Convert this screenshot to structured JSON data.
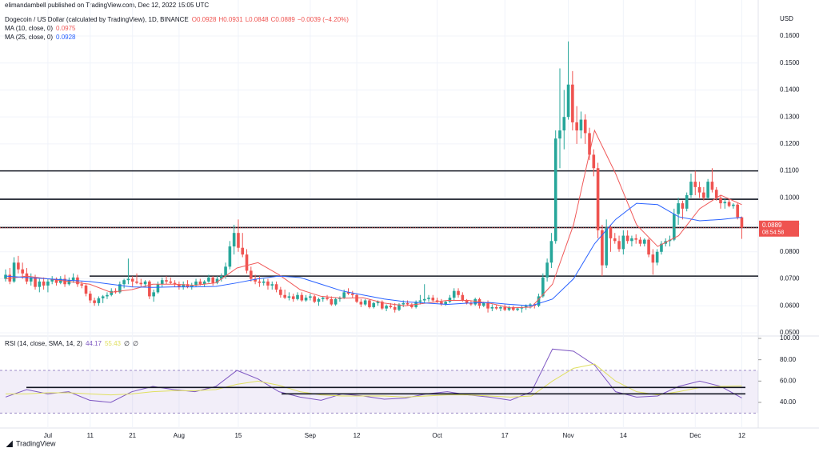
{
  "chart_data": {
    "type": "candlestick",
    "published": "elimandambell published on TradingView.com, Dec 12, 2022 15:05 UTC",
    "title": "Dogecoin / US Dollar (calculated by TradingView), 1D, BINANCE",
    "ohlc_labels": [
      "O0.0928",
      "H0.0931",
      "L0.0848",
      "C0.0889",
      "−0.0039 (−4.20%)"
    ],
    "currency": "USD",
    "last_price_label": "0.0889",
    "countdown": "08:54:58",
    "brand": "TradingView",
    "up_color": "#26a69a",
    "down_color": "#ef5350",
    "ylim": [
      0.0488,
      0.1689
    ],
    "yticks": [
      {
        "value": 0.05,
        "label": "0.0500"
      },
      {
        "value": 0.06,
        "label": "0.0600"
      },
      {
        "value": 0.07,
        "label": "0.0700"
      },
      {
        "value": 0.08,
        "label": "0.0800"
      },
      {
        "value": 0.09,
        "label": "0.0900"
      },
      {
        "value": 0.1,
        "label": "0.1000"
      },
      {
        "value": 0.11,
        "label": "0.1100"
      },
      {
        "value": 0.12,
        "label": "0.1200"
      },
      {
        "value": 0.13,
        "label": "0.1300"
      },
      {
        "value": 0.14,
        "label": "0.1400"
      },
      {
        "value": 0.15,
        "label": "0.1500"
      },
      {
        "value": 0.16,
        "label": "0.1600"
      }
    ],
    "xticks": [
      {
        "value": 10,
        "label": "Jul"
      },
      {
        "value": 20,
        "label": "11"
      },
      {
        "value": 30,
        "label": "21"
      },
      {
        "value": 41,
        "label": "Aug"
      },
      {
        "value": 55,
        "label": "15"
      },
      {
        "value": 72,
        "label": "Sep"
      },
      {
        "value": 83,
        "label": "12"
      },
      {
        "value": 102,
        "label": "Oct"
      },
      {
        "value": 118,
        "label": "17"
      },
      {
        "value": 133,
        "label": "Nov"
      },
      {
        "value": 146,
        "label": "14"
      },
      {
        "value": 163,
        "label": "Dec"
      },
      {
        "value": 174,
        "label": "12"
      }
    ],
    "levels": [
      0.11,
      0.0995,
      0.089,
      0.071
    ],
    "ma": [
      {
        "name": "MA (10, close, 0)",
        "value_label": "0.0975",
        "color": "#f05a5a",
        "values": [
          0.07,
          0.071,
          0.07,
          0.069,
          0.068,
          0.065,
          0.066,
          0.068,
          0.068,
          0.0676,
          0.0685,
          0.074,
          0.076,
          0.0715,
          0.066,
          0.0635,
          0.0628,
          0.063,
          0.061,
          0.06,
          0.061,
          0.062,
          0.062,
          0.061,
          0.0592,
          0.0595,
          0.068,
          0.09,
          0.125,
          0.109,
          0.09,
          0.082,
          0.086,
          0.096,
          0.101,
          0.0975
        ]
      },
      {
        "name": "MA (25, close, 0)",
        "value_label": "0.0928",
        "color": "#2962ff",
        "values": [
          0.071,
          0.0705,
          0.07,
          0.0695,
          0.069,
          0.068,
          0.067,
          0.0668,
          0.067,
          0.067,
          0.0672,
          0.0685,
          0.07,
          0.071,
          0.0705,
          0.068,
          0.0655,
          0.064,
          0.0625,
          0.0615,
          0.061,
          0.0605,
          0.061,
          0.0612,
          0.0605,
          0.06,
          0.0625,
          0.07,
          0.083,
          0.092,
          0.098,
          0.0975,
          0.093,
          0.0915,
          0.092,
          0.0928
        ]
      }
    ],
    "ohlc": [
      [
        0.07,
        0.0735,
        0.069,
        0.0715
      ],
      [
        0.0715,
        0.074,
        0.068,
        0.069
      ],
      [
        0.069,
        0.078,
        0.0685,
        0.076
      ],
      [
        0.076,
        0.0785,
        0.072,
        0.0735
      ],
      [
        0.0735,
        0.076,
        0.07,
        0.072
      ],
      [
        0.072,
        0.074,
        0.068,
        0.069
      ],
      [
        0.069,
        0.072,
        0.0675,
        0.0705
      ],
      [
        0.0705,
        0.0715,
        0.066,
        0.067
      ],
      [
        0.067,
        0.07,
        0.065,
        0.069
      ],
      [
        0.069,
        0.0705,
        0.066,
        0.0675
      ],
      [
        0.0675,
        0.07,
        0.065,
        0.069
      ],
      [
        0.069,
        0.071,
        0.068,
        0.07
      ],
      [
        0.07,
        0.0705,
        0.0675,
        0.0685
      ],
      [
        0.0685,
        0.071,
        0.068,
        0.07
      ],
      [
        0.07,
        0.0715,
        0.067,
        0.068
      ],
      [
        0.068,
        0.0705,
        0.0675,
        0.0695
      ],
      [
        0.0695,
        0.072,
        0.0685,
        0.0705
      ],
      [
        0.0705,
        0.0715,
        0.067,
        0.068
      ],
      [
        0.068,
        0.069,
        0.0665,
        0.0675
      ],
      [
        0.0675,
        0.068,
        0.0635,
        0.0645
      ],
      [
        0.0645,
        0.0655,
        0.061,
        0.062
      ],
      [
        0.062,
        0.063,
        0.06,
        0.061
      ],
      [
        0.061,
        0.0635,
        0.06,
        0.0628
      ],
      [
        0.0628,
        0.064,
        0.061,
        0.0635
      ],
      [
        0.0635,
        0.065,
        0.0625,
        0.064
      ],
      [
        0.064,
        0.0665,
        0.0635,
        0.0655
      ],
      [
        0.0655,
        0.0665,
        0.0645,
        0.065
      ],
      [
        0.065,
        0.069,
        0.0645,
        0.068
      ],
      [
        0.068,
        0.07,
        0.0665,
        0.0695
      ],
      [
        0.0695,
        0.0775,
        0.068,
        0.07
      ],
      [
        0.07,
        0.071,
        0.067,
        0.069
      ],
      [
        0.069,
        0.072,
        0.068,
        0.0685
      ],
      [
        0.0685,
        0.07,
        0.067,
        0.068
      ],
      [
        0.068,
        0.0695,
        0.067,
        0.069
      ],
      [
        0.069,
        0.0695,
        0.0625,
        0.0635
      ],
      [
        0.0635,
        0.066,
        0.0615,
        0.065
      ],
      [
        0.065,
        0.069,
        0.0645,
        0.068
      ],
      [
        0.068,
        0.0705,
        0.067,
        0.0695
      ],
      [
        0.0695,
        0.071,
        0.068,
        0.069
      ],
      [
        0.069,
        0.0705,
        0.068,
        0.0685
      ],
      [
        0.0685,
        0.0695,
        0.067,
        0.068
      ],
      [
        0.068,
        0.069,
        0.066,
        0.067
      ],
      [
        0.067,
        0.069,
        0.066,
        0.068
      ],
      [
        0.068,
        0.0695,
        0.0665,
        0.067
      ],
      [
        0.067,
        0.0685,
        0.066,
        0.0675
      ],
      [
        0.0675,
        0.07,
        0.067,
        0.069
      ],
      [
        0.069,
        0.07,
        0.0675,
        0.068
      ],
      [
        0.068,
        0.0695,
        0.067,
        0.069
      ],
      [
        0.069,
        0.0715,
        0.0685,
        0.0705
      ],
      [
        0.0705,
        0.071,
        0.0675,
        0.0685
      ],
      [
        0.0685,
        0.071,
        0.068,
        0.07
      ],
      [
        0.07,
        0.072,
        0.069,
        0.071
      ],
      [
        0.071,
        0.076,
        0.07,
        0.0745
      ],
      [
        0.0745,
        0.084,
        0.0735,
        0.082
      ],
      [
        0.082,
        0.09,
        0.079,
        0.087
      ],
      [
        0.087,
        0.092,
        0.08,
        0.0815
      ],
      [
        0.0815,
        0.087,
        0.078,
        0.079
      ],
      [
        0.079,
        0.081,
        0.072,
        0.073
      ],
      [
        0.073,
        0.0745,
        0.069,
        0.07
      ],
      [
        0.07,
        0.0715,
        0.068,
        0.069
      ],
      [
        0.069,
        0.071,
        0.067,
        0.0685
      ],
      [
        0.0685,
        0.07,
        0.0675,
        0.069
      ],
      [
        0.069,
        0.07,
        0.066,
        0.0675
      ],
      [
        0.0675,
        0.069,
        0.066,
        0.068
      ],
      [
        0.068,
        0.069,
        0.065,
        0.066
      ],
      [
        0.066,
        0.067,
        0.063,
        0.064
      ],
      [
        0.064,
        0.066,
        0.0625,
        0.063
      ],
      [
        0.063,
        0.065,
        0.062,
        0.0635
      ],
      [
        0.0635,
        0.0645,
        0.0615,
        0.0625
      ],
      [
        0.0625,
        0.065,
        0.062,
        0.064
      ],
      [
        0.064,
        0.065,
        0.0615,
        0.062
      ],
      [
        0.062,
        0.064,
        0.0615,
        0.063
      ],
      [
        0.063,
        0.0645,
        0.062,
        0.0635
      ],
      [
        0.0635,
        0.064,
        0.061,
        0.0615
      ],
      [
        0.0615,
        0.063,
        0.06,
        0.0625
      ],
      [
        0.0625,
        0.0635,
        0.0615,
        0.063
      ],
      [
        0.063,
        0.064,
        0.062,
        0.0625
      ],
      [
        0.0625,
        0.0635,
        0.06,
        0.0605
      ],
      [
        0.0605,
        0.063,
        0.06,
        0.0625
      ],
      [
        0.0625,
        0.0635,
        0.0615,
        0.063
      ],
      [
        0.063,
        0.066,
        0.0625,
        0.065
      ],
      [
        0.065,
        0.0665,
        0.064,
        0.0645
      ],
      [
        0.0645,
        0.0655,
        0.063,
        0.064
      ],
      [
        0.064,
        0.0645,
        0.061,
        0.0615
      ],
      [
        0.0615,
        0.0625,
        0.0595,
        0.0605
      ],
      [
        0.0605,
        0.0625,
        0.06,
        0.062
      ],
      [
        0.062,
        0.0625,
        0.059,
        0.0595
      ],
      [
        0.0595,
        0.0615,
        0.059,
        0.061
      ],
      [
        0.061,
        0.062,
        0.06,
        0.0615
      ],
      [
        0.0615,
        0.062,
        0.0585,
        0.059
      ],
      [
        0.059,
        0.0605,
        0.058,
        0.06
      ],
      [
        0.06,
        0.061,
        0.059,
        0.0595
      ],
      [
        0.0595,
        0.061,
        0.0575,
        0.0585
      ],
      [
        0.0585,
        0.061,
        0.058,
        0.0605
      ],
      [
        0.0605,
        0.062,
        0.0595,
        0.061
      ],
      [
        0.061,
        0.062,
        0.06,
        0.0605
      ],
      [
        0.0605,
        0.061,
        0.059,
        0.0595
      ],
      [
        0.0595,
        0.062,
        0.059,
        0.0615
      ],
      [
        0.0615,
        0.064,
        0.0605,
        0.062
      ],
      [
        0.062,
        0.068,
        0.061,
        0.0625
      ],
      [
        0.0625,
        0.064,
        0.0615,
        0.063
      ],
      [
        0.063,
        0.064,
        0.0615,
        0.062
      ],
      [
        0.062,
        0.063,
        0.061,
        0.0615
      ],
      [
        0.0615,
        0.0625,
        0.06,
        0.0605
      ],
      [
        0.0605,
        0.062,
        0.06,
        0.0615
      ],
      [
        0.0615,
        0.064,
        0.061,
        0.063
      ],
      [
        0.063,
        0.0665,
        0.062,
        0.0655
      ],
      [
        0.0655,
        0.0665,
        0.063,
        0.064
      ],
      [
        0.064,
        0.065,
        0.0615,
        0.062
      ],
      [
        0.062,
        0.0625,
        0.0605,
        0.061
      ],
      [
        0.061,
        0.062,
        0.06,
        0.0605
      ],
      [
        0.0605,
        0.063,
        0.06,
        0.0625
      ],
      [
        0.0625,
        0.063,
        0.059,
        0.06
      ],
      [
        0.06,
        0.0615,
        0.0595,
        0.061
      ],
      [
        0.061,
        0.062,
        0.0575,
        0.059
      ],
      [
        0.059,
        0.0605,
        0.058,
        0.0595
      ],
      [
        0.0595,
        0.0605,
        0.0585,
        0.059
      ],
      [
        0.059,
        0.06,
        0.058,
        0.0595
      ],
      [
        0.0595,
        0.0605,
        0.058,
        0.0585
      ],
      [
        0.0585,
        0.06,
        0.058,
        0.0595
      ],
      [
        0.0595,
        0.06,
        0.058,
        0.0585
      ],
      [
        0.0585,
        0.0595,
        0.058,
        0.059
      ],
      [
        0.059,
        0.06,
        0.0575,
        0.0595
      ],
      [
        0.0595,
        0.0605,
        0.0585,
        0.06
      ],
      [
        0.06,
        0.061,
        0.059,
        0.0605
      ],
      [
        0.0605,
        0.061,
        0.059,
        0.06
      ],
      [
        0.06,
        0.0645,
        0.0595,
        0.0635
      ],
      [
        0.0635,
        0.072,
        0.063,
        0.0705
      ],
      [
        0.0705,
        0.0775,
        0.069,
        0.076
      ],
      [
        0.076,
        0.087,
        0.074,
        0.084
      ],
      [
        0.084,
        0.125,
        0.083,
        0.122
      ],
      [
        0.122,
        0.148,
        0.111,
        0.125
      ],
      [
        0.125,
        0.14,
        0.118,
        0.13
      ],
      [
        0.13,
        0.158,
        0.129,
        0.142
      ],
      [
        0.142,
        0.147,
        0.125,
        0.128
      ],
      [
        0.128,
        0.134,
        0.12,
        0.125
      ],
      [
        0.125,
        0.132,
        0.122,
        0.129
      ],
      [
        0.129,
        0.131,
        0.12,
        0.124
      ],
      [
        0.124,
        0.126,
        0.114,
        0.116
      ],
      [
        0.116,
        0.118,
        0.108,
        0.111
      ],
      [
        0.111,
        0.113,
        0.085,
        0.088
      ],
      [
        0.088,
        0.09,
        0.071,
        0.075
      ],
      [
        0.075,
        0.092,
        0.074,
        0.089
      ],
      [
        0.089,
        0.09,
        0.08,
        0.085
      ],
      [
        0.085,
        0.087,
        0.083,
        0.084
      ],
      [
        0.084,
        0.086,
        0.08,
        0.081
      ],
      [
        0.081,
        0.088,
        0.079,
        0.086
      ],
      [
        0.086,
        0.088,
        0.083,
        0.084
      ],
      [
        0.084,
        0.086,
        0.082,
        0.085
      ],
      [
        0.085,
        0.0865,
        0.083,
        0.0845
      ],
      [
        0.0845,
        0.0855,
        0.082,
        0.083
      ],
      [
        0.083,
        0.085,
        0.082,
        0.0845
      ],
      [
        0.0845,
        0.085,
        0.078,
        0.079
      ],
      [
        0.079,
        0.081,
        0.0715,
        0.076
      ],
      [
        0.076,
        0.081,
        0.075,
        0.08
      ],
      [
        0.08,
        0.084,
        0.079,
        0.083
      ],
      [
        0.083,
        0.085,
        0.082,
        0.084
      ],
      [
        0.084,
        0.086,
        0.082,
        0.0845
      ],
      [
        0.0845,
        0.096,
        0.084,
        0.094
      ],
      [
        0.094,
        0.1,
        0.09,
        0.098
      ],
      [
        0.098,
        0.099,
        0.092,
        0.096
      ],
      [
        0.096,
        0.102,
        0.095,
        0.101
      ],
      [
        0.101,
        0.109,
        0.1,
        0.106
      ],
      [
        0.106,
        0.11,
        0.101,
        0.104
      ],
      [
        0.104,
        0.106,
        0.1,
        0.102
      ],
      [
        0.102,
        0.104,
        0.099,
        0.1
      ],
      [
        0.1,
        0.107,
        0.0995,
        0.106
      ],
      [
        0.106,
        0.111,
        0.102,
        0.103
      ],
      [
        0.103,
        0.104,
        0.099,
        0.1
      ],
      [
        0.1,
        0.101,
        0.096,
        0.098
      ],
      [
        0.098,
        0.0995,
        0.096,
        0.0985
      ],
      [
        0.0985,
        0.0995,
        0.0965,
        0.097
      ],
      [
        0.097,
        0.098,
        0.096,
        0.0975
      ],
      [
        0.0975,
        0.098,
        0.092,
        0.0928
      ],
      [
        0.0928,
        0.0931,
        0.0848,
        0.0889
      ]
    ],
    "rsi": {
      "name": "RSI (14, close, SMA, 14, 2)",
      "ylim": [
        19.75,
        102.25
      ],
      "band": [
        30,
        70
      ],
      "levels": [
        54,
        48
      ],
      "yticks": [
        {
          "value": 40,
          "label": "40.00"
        },
        {
          "value": 60,
          "label": "60.00"
        },
        {
          "value": 80,
          "label": "80.00"
        },
        {
          "value": 100,
          "label": "100.00"
        }
      ],
      "series": [
        {
          "name": "RSI",
          "value_label": "44.17",
          "color": "#7e57c2",
          "values": [
            45,
            52,
            48,
            50,
            42,
            40,
            50,
            55,
            52,
            50,
            55,
            70,
            62,
            50,
            45,
            42,
            48,
            46,
            43,
            44,
            48,
            50,
            47,
            45,
            42,
            50,
            90,
            88,
            75,
            50,
            45,
            46,
            55,
            60,
            55,
            44.17
          ]
        },
        {
          "name": "SMA",
          "value_label": "55.43",
          "color": "#e0e060",
          "values": [
            48,
            48,
            49,
            49,
            48,
            47,
            48,
            50,
            51,
            51,
            52,
            57,
            60,
            56,
            50,
            47,
            46,
            46,
            46,
            45,
            46,
            47,
            47,
            46,
            45,
            46,
            60,
            72,
            76,
            60,
            50,
            47,
            50,
            54,
            55,
            55.43
          ]
        }
      ],
      "na_labels": [
        "∅",
        "∅"
      ]
    }
  }
}
